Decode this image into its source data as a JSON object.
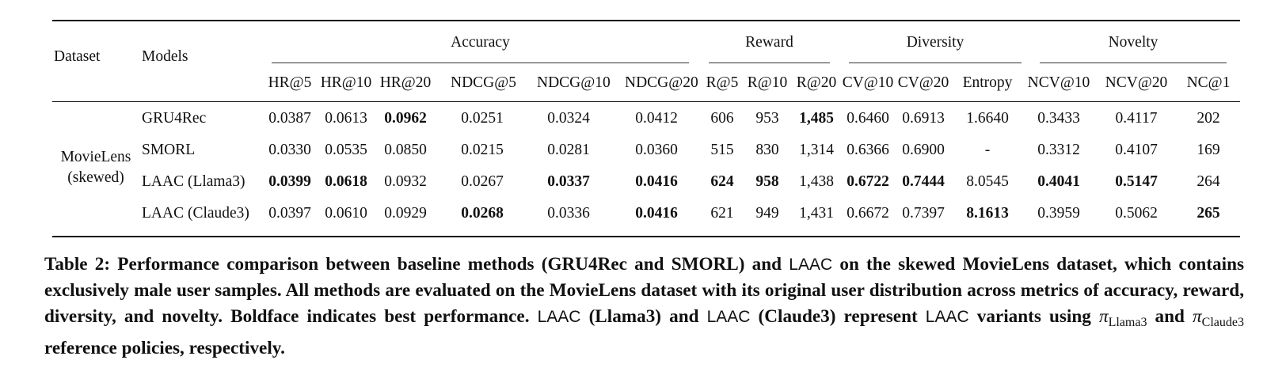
{
  "header": {
    "dataset": "Dataset",
    "models": "Models",
    "groups": [
      "Accuracy",
      "Reward",
      "Diversity",
      "Novelty"
    ],
    "metrics": [
      "HR@5",
      "HR@10",
      "HR@20",
      "NDCG@5",
      "NDCG@10",
      "NDCG@20",
      "R@5",
      "R@10",
      "R@20",
      "CV@10",
      "CV@20",
      "Entropy",
      "NCV@10",
      "NCV@20",
      "NC@1"
    ]
  },
  "dataset": {
    "line1": "MovieLens",
    "line2": "(skewed)"
  },
  "rows": [
    {
      "model": "GRU4Rec",
      "values": [
        "0.0387",
        "0.0613",
        "0.0962",
        "0.0251",
        "0.0324",
        "0.0412",
        "606",
        "953",
        "1,485",
        "0.6460",
        "0.6913",
        "1.6640",
        "0.3433",
        "0.4117",
        "202"
      ],
      "bold": [
        2,
        8
      ]
    },
    {
      "model": "SMORL",
      "values": [
        "0.0330",
        "0.0535",
        "0.0850",
        "0.0215",
        "0.0281",
        "0.0360",
        "515",
        "830",
        "1,314",
        "0.6366",
        "0.6900",
        "-",
        "0.3312",
        "0.4107",
        "169"
      ],
      "bold": []
    },
    {
      "model": "LAAC (Llama3)",
      "values": [
        "0.0399",
        "0.0618",
        "0.0932",
        "0.0267",
        "0.0337",
        "0.0416",
        "624",
        "958",
        "1,438",
        "0.6722",
        "0.7444",
        "8.0545",
        "0.4041",
        "0.5147",
        "264"
      ],
      "bold": [
        0,
        1,
        4,
        5,
        6,
        7,
        9,
        10,
        12,
        13
      ]
    },
    {
      "model": "LAAC (Claude3)",
      "values": [
        "0.0397",
        "0.0610",
        "0.0929",
        "0.0268",
        "0.0336",
        "0.0416",
        "621",
        "949",
        "1,431",
        "0.6672",
        "0.7397",
        "8.1613",
        "0.3959",
        "0.5062",
        "265"
      ],
      "bold": [
        3,
        5,
        11,
        14
      ]
    }
  ],
  "caption": {
    "p1": "Table 2: Performance comparison between baseline methods (GRU4Rec and SMORL) and ",
    "laac1": "LAAC",
    "p2": " on the skewed MovieLens dataset, which contains exclusively male user samples. All methods are evaluated on the MovieLens dataset with its original user distribution across metrics of accuracy, reward, diversity, and novelty. Boldface indicates best performance. ",
    "laac2": "LAAC",
    "p3": " (Llama3) and ",
    "laac3": "LAAC",
    "p4": " (Claude3) represent ",
    "laac4": "LAAC",
    "p5": " variants using ",
    "pi1": "π",
    "sub1": "Llama3",
    "p6": " and ",
    "pi2": "π",
    "sub2": "Claude3",
    "p7": " reference policies, respectively."
  }
}
